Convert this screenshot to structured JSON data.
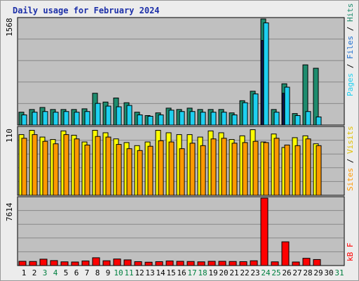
{
  "title": "Daily usage for February 2024",
  "legend_top": {
    "pages": "Pages",
    "files": "Files",
    "hits": "Hits",
    "sep": " / "
  },
  "legend_mid": {
    "sites": "Sites",
    "visits": "Visits",
    "sep": " / "
  },
  "legend_bot": {
    "kbf": "kB F"
  },
  "colors": {
    "hits": "#1e8c6e",
    "files": "#1ed0f0",
    "pages": "#1ed0f0",
    "visits": "#ffff00",
    "sites": "#ff9900",
    "kbf": "#ff0000",
    "weekday": "#000000",
    "weekend": "#008040",
    "plot_bg": "#c0c0c0",
    "title": "#1c2fa8"
  },
  "chart_data": [
    {
      "type": "bar",
      "title": "Daily usage for February 2024",
      "categories": [
        "1",
        "2",
        "3",
        "4",
        "5",
        "6",
        "7",
        "8",
        "9",
        "10",
        "11",
        "12",
        "13",
        "14",
        "15",
        "16",
        "17",
        "18",
        "19",
        "20",
        "21",
        "22",
        "23",
        "24",
        "25",
        "26",
        "27",
        "28",
        "29",
        "30",
        "31"
      ],
      "weekend_days": [
        "3",
        "4",
        "10",
        "11",
        "17",
        "18",
        "24",
        "25",
        "31"
      ],
      "ymax_label": "1568",
      "ylim": [
        0,
        1568
      ],
      "series": [
        {
          "name": "Hits",
          "values": [
            190,
            230,
            260,
            230,
            230,
            230,
            240,
            470,
            340,
            400,
            330,
            190,
            140,
            180,
            250,
            230,
            250,
            230,
            230,
            230,
            180,
            360,
            500,
            1568,
            230,
            610,
            170,
            890,
            840,
            0,
            0
          ]
        },
        {
          "name": "Files",
          "values": [
            150,
            190,
            200,
            190,
            200,
            190,
            200,
            320,
            280,
            270,
            290,
            150,
            130,
            150,
            220,
            200,
            200,
            190,
            190,
            190,
            150,
            330,
            460,
            1510,
            190,
            560,
            140,
            200,
            120,
            0,
            0
          ]
        },
        {
          "name": "Pages",
          "values": [
            0,
            0,
            0,
            0,
            0,
            0,
            0,
            0,
            0,
            0,
            0,
            0,
            0,
            0,
            0,
            0,
            0,
            0,
            0,
            0,
            0,
            0,
            0,
            1250,
            0,
            470,
            0,
            0,
            0,
            0,
            0
          ]
        }
      ]
    },
    {
      "type": "bar",
      "categories": [
        "1",
        "2",
        "3",
        "4",
        "5",
        "6",
        "7",
        "8",
        "9",
        "10",
        "11",
        "12",
        "13",
        "14",
        "15",
        "16",
        "17",
        "18",
        "19",
        "20",
        "21",
        "22",
        "23",
        "24",
        "25",
        "26",
        "27",
        "28",
        "29",
        "30",
        "31"
      ],
      "ymax_label": "110",
      "ylim": [
        0,
        110
      ],
      "series": [
        {
          "name": "Visits",
          "values": [
            99,
            106,
            95,
            91,
            105,
            98,
            87,
            106,
            102,
            92,
            86,
            81,
            87,
            106,
            102,
            99,
            99,
            95,
            105,
            102,
            91,
            97,
            107,
            87,
            100,
            78,
            94,
            97,
            84,
            0,
            0
          ]
        },
        {
          "name": "Sites",
          "values": [
            93,
            99,
            88,
            84,
            99,
            92,
            82,
            96,
            95,
            83,
            76,
            73,
            80,
            89,
            87,
            76,
            85,
            81,
            92,
            93,
            85,
            86,
            88,
            86,
            93,
            82,
            81,
            92,
            81,
            0,
            0
          ]
        }
      ]
    },
    {
      "type": "bar",
      "categories": [
        "1",
        "2",
        "3",
        "4",
        "5",
        "6",
        "7",
        "8",
        "9",
        "10",
        "11",
        "12",
        "13",
        "14",
        "15",
        "16",
        "17",
        "18",
        "19",
        "20",
        "21",
        "22",
        "23",
        "24",
        "25",
        "26",
        "27",
        "28",
        "29",
        "30",
        "31"
      ],
      "ymax_label": "7614",
      "ylim": [
        0,
        7614
      ],
      "series": [
        {
          "name": "kB F",
          "values": [
            480,
            460,
            720,
            560,
            420,
            400,
            520,
            880,
            540,
            740,
            640,
            440,
            380,
            440,
            520,
            480,
            460,
            420,
            480,
            480,
            460,
            440,
            540,
            7614,
            420,
            2680,
            400,
            820,
            680,
            0,
            0
          ]
        }
      ]
    }
  ]
}
